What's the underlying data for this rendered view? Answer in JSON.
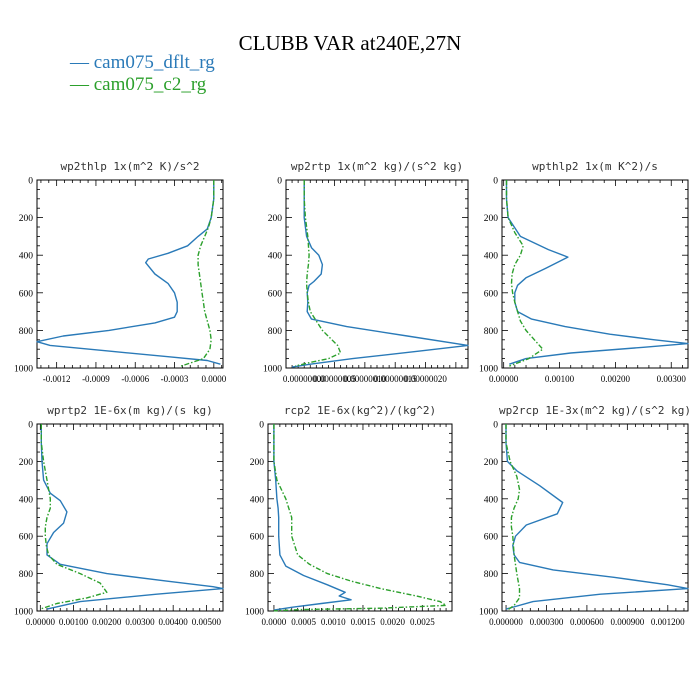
{
  "figure": {
    "title": "CLUBB VAR at240E,27N",
    "legend": [
      {
        "name": "cam075_dflt_rg",
        "color": "#2a7ab8",
        "dash": "solid"
      },
      {
        "name": "cam075_c2_rg",
        "color": "#2ca02c",
        "dash": "dashed"
      }
    ]
  },
  "chart_data": [
    {
      "type": "line",
      "title": "wp2thlp   1x(m^2 K)/s^2",
      "xlim": [
        -0.00135,
        7e-05
      ],
      "ylim": [
        1000,
        0
      ],
      "xticks": [
        -0.0012,
        -0.0009,
        -0.0006,
        -0.0003,
        0
      ],
      "xtick_labels": [
        "-0.0012",
        "-0.0009",
        "-0.0006",
        "-0.0003",
        "0.0000"
      ],
      "yticks": [
        0,
        200,
        400,
        600,
        800,
        1000
      ],
      "series": [
        {
          "name": "cam075_dflt_rg",
          "x": [
            0,
            0,
            -2e-05,
            -5e-05,
            -0.00012,
            -0.0002,
            -0.00035,
            -0.0005,
            -0.00052,
            -0.00045,
            -0.00035,
            -0.0003,
            -0.00028,
            -0.00028,
            -0.0003,
            -0.00045,
            -0.0008,
            -0.00115,
            -0.00135,
            -0.00125,
            -0.0008,
            -0.00035,
            -5e-05,
            5e-05
          ],
          "y": [
            0,
            100,
            200,
            260,
            300,
            350,
            390,
            420,
            440,
            500,
            550,
            600,
            650,
            700,
            730,
            760,
            800,
            830,
            860,
            880,
            910,
            940,
            960,
            980
          ]
        },
        {
          "name": "cam075_c2_rg",
          "x": [
            0,
            0,
            -2e-05,
            -4e-05,
            -7e-05,
            -0.0001,
            -0.00012,
            -0.00012,
            -0.00011,
            -0.0001,
            -9e-05,
            -8e-05,
            -7e-05,
            -5e-05,
            -3e-05,
            -2e-05,
            -3e-05,
            -8e-05,
            -0.00025
          ],
          "y": [
            0,
            100,
            200,
            250,
            300,
            350,
            400,
            450,
            500,
            550,
            600,
            650,
            700,
            750,
            800,
            850,
            900,
            950,
            990
          ]
        }
      ]
    },
    {
      "type": "line",
      "title": "wp2rtp   1x(m^2 kg)/(s^2 kg)",
      "xlim": [
        -3e-08,
        2.7e-07
      ],
      "ylim": [
        1000,
        0
      ],
      "xticks": [
        0,
        5e-08,
        1e-07,
        1.5e-07,
        2e-07
      ],
      "xtick_labels": [
        "0.00000000",
        "0.00000005",
        "0.00000010",
        "0.00000015",
        "0.00000020"
      ],
      "yticks": [
        0,
        200,
        400,
        600,
        800,
        1000
      ],
      "series": [
        {
          "name": "cam075_dflt_rg",
          "x": [
            0,
            0,
            0,
            4e-09,
            1.2e-08,
            2.4e-08,
            3e-08,
            2.8e-08,
            1.6e-08,
            8e-09,
            5e-09,
            6e-09,
            5e-09,
            1.2e-08,
            7e-08,
            1.7e-07,
            2.7e-07,
            1.9e-07,
            8e-08,
            1e-08,
            -2e-08
          ],
          "y": [
            0,
            100,
            200,
            300,
            360,
            400,
            450,
            500,
            540,
            560,
            600,
            650,
            700,
            740,
            780,
            830,
            880,
            910,
            950,
            980,
            995
          ]
        },
        {
          "name": "cam075_c2_rg",
          "x": [
            0,
            0,
            2e-09,
            6e-09,
            8e-09,
            7e-09,
            5e-09,
            4e-09,
            5e-09,
            7e-09,
            1e-08,
            3e-08,
            5.5e-08,
            6e-08,
            4e-08,
            1e-08,
            -1.5e-08
          ],
          "y": [
            0,
            100,
            200,
            300,
            400,
            450,
            500,
            550,
            600,
            650,
            700,
            800,
            880,
            920,
            950,
            970,
            990
          ]
        }
      ]
    },
    {
      "type": "line",
      "title": "wpthlp2   1x(m K^2)/s",
      "xlim": [
        -3e-05,
        0.0033
      ],
      "ylim": [
        1000,
        0
      ],
      "xticks": [
        0,
        0.001,
        0.002,
        0.003
      ],
      "xtick_labels": [
        "0.00000",
        "0.00100",
        "0.00200",
        "0.00300"
      ],
      "yticks": [
        0,
        200,
        400,
        600,
        800,
        1000
      ],
      "series": [
        {
          "name": "cam075_dflt_rg",
          "x": [
            5e-05,
            5e-05,
            8e-05,
            0.0003,
            0.0008,
            0.00115,
            0.00075,
            0.0004,
            0.00025,
            0.0002,
            0.0002,
            0.00025,
            0.0005,
            0.0011,
            0.0019,
            0.0027,
            0.0033,
            0.0025,
            0.0012,
            0.0004,
            0.0001
          ],
          "y": [
            0,
            100,
            200,
            300,
            370,
            410,
            470,
            520,
            560,
            600,
            650,
            700,
            740,
            780,
            820,
            850,
            870,
            890,
            920,
            950,
            980
          ]
        },
        {
          "name": "cam075_c2_rg",
          "x": [
            5e-05,
            5e-05,
            8e-05,
            0.0002,
            0.00035,
            0.0003,
            0.0002,
            0.00015,
            0.00014,
            0.00016,
            0.0002,
            0.00025,
            0.0003,
            0.0004,
            0.00055,
            0.0007,
            0.00045,
            0.0001
          ],
          "y": [
            0,
            100,
            200,
            280,
            350,
            400,
            450,
            500,
            550,
            600,
            650,
            700,
            750,
            800,
            850,
            900,
            950,
            990
          ]
        }
      ]
    },
    {
      "type": "line",
      "title": "wprtp2   1E-6x(m kg)/(s kg)",
      "xlim": [
        -0.0001,
        0.0055
      ],
      "ylim": [
        1000,
        0
      ],
      "xticks": [
        0,
        0.001,
        0.002,
        0.003,
        0.004,
        0.005
      ],
      "xtick_labels": [
        "0.00000",
        "0.00100",
        "0.00200",
        "0.00300",
        "0.00400",
        "0.00500"
      ],
      "yticks": [
        0,
        200,
        400,
        600,
        800,
        1000
      ],
      "series": [
        {
          "name": "cam075_dflt_rg",
          "x": [
            3e-05,
            3e-05,
            5e-05,
            0.0001,
            0.0003,
            0.0006,
            0.0008,
            0.0007,
            0.0004,
            0.0002,
            0.0002,
            0.0006,
            0.002,
            0.0038,
            0.0052,
            0.0055,
            0.0035,
            0.0012,
            0.0002
          ],
          "y": [
            0,
            100,
            200,
            300,
            370,
            410,
            470,
            530,
            580,
            640,
            700,
            750,
            800,
            840,
            870,
            880,
            910,
            950,
            990
          ]
        },
        {
          "name": "cam075_c2_rg",
          "x": [
            3e-05,
            3e-05,
            0.0001,
            0.0002,
            0.0003,
            0.0003,
            0.0002,
            0.00015,
            0.00015,
            0.00018,
            0.00025,
            0.0005,
            0.0012,
            0.0018,
            0.002,
            0.0014,
            0.0005,
            0
          ],
          "y": [
            0,
            100,
            200,
            300,
            400,
            450,
            500,
            550,
            600,
            650,
            700,
            750,
            800,
            850,
            900,
            930,
            960,
            990
          ]
        }
      ]
    },
    {
      "type": "line",
      "title": "rcp2   1E-6x(kg^2)/(kg^2)",
      "xlim": [
        -0.0001,
        0.003
      ],
      "ylim": [
        1000,
        0
      ],
      "xticks": [
        0,
        0.0005,
        0.001,
        0.0015,
        0.002,
        0.0025
      ],
      "xtick_labels": [
        "0.0000",
        "0.0005",
        "0.0010",
        "0.0015",
        "0.0020",
        "0.0025"
      ],
      "yticks": [
        0,
        200,
        400,
        600,
        800,
        1000
      ],
      "series": [
        {
          "name": "cam075_dflt_rg",
          "x": [
            0,
            0,
            3e-05,
            5e-05,
            7e-05,
            8e-05,
            8e-05,
            0.0001,
            0.0002,
            0.0005,
            0.0009,
            0.0012,
            0.0011,
            0.0013,
            0.0008,
            0.0003,
            0
          ],
          "y": [
            0,
            200,
            300,
            400,
            450,
            500,
            600,
            700,
            760,
            810,
            860,
            900,
            920,
            940,
            960,
            980,
            995
          ]
        },
        {
          "name": "cam075_c2_rg",
          "x": [
            0,
            0,
            5e-05,
            0.0002,
            0.0003,
            0.0003,
            0.0004,
            0.0006,
            0.0009,
            0.0013,
            0.0018,
            0.0024,
            0.0028,
            0.0029,
            0.0018,
            0.0005,
            0
          ],
          "y": [
            0,
            200,
            300,
            400,
            500,
            600,
            700,
            750,
            800,
            840,
            880,
            920,
            950,
            970,
            985,
            992,
            999
          ]
        }
      ]
    },
    {
      "type": "line",
      "title": "wp2rcp   1E-3x(m^2 kg)/(s^2 kg)",
      "xlim": [
        -3e-05,
        0.00135
      ],
      "ylim": [
        1000,
        0
      ],
      "xticks": [
        0,
        0.0003,
        0.0006,
        0.0009,
        0.0012
      ],
      "xtick_labels": [
        "0.000000",
        "0.000300",
        "0.000600",
        "0.000900",
        "0.001200"
      ],
      "yticks": [
        0,
        200,
        400,
        600,
        800,
        1000
      ],
      "series": [
        {
          "name": "cam075_dflt_rg",
          "x": [
            0,
            0,
            1e-05,
            8e-05,
            0.00025,
            0.00042,
            0.00038,
            0.00015,
            7e-05,
            5e-05,
            6e-05,
            0.0001,
            0.00035,
            0.0008,
            0.0012,
            0.00135,
            0.0007,
            0.0002,
            0
          ],
          "y": [
            0,
            100,
            200,
            250,
            330,
            420,
            480,
            540,
            600,
            650,
            700,
            740,
            780,
            820,
            860,
            880,
            910,
            950,
            990
          ]
        },
        {
          "name": "cam075_c2_rg",
          "x": [
            0,
            0,
            3e-05,
            8e-05,
            0.0001,
            9e-05,
            6e-05,
            4e-05,
            4e-05,
            5e-05,
            6e-05,
            8e-05,
            0.0001,
            0.0001,
            6e-05,
            1e-05
          ],
          "y": [
            0,
            100,
            200,
            280,
            350,
            400,
            450,
            500,
            550,
            600,
            700,
            800,
            880,
            930,
            970,
            995
          ]
        }
      ]
    }
  ]
}
